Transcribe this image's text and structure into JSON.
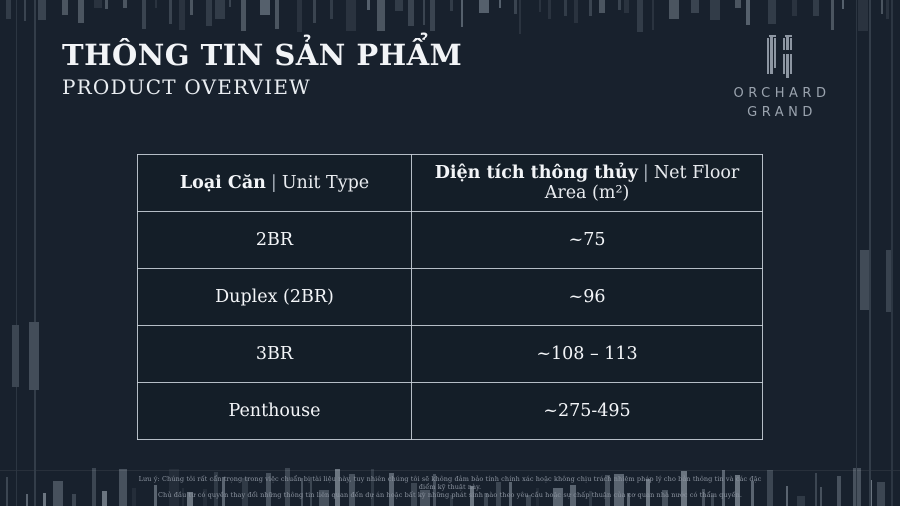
{
  "header": {
    "title_vi": "THÔNG TIN SẢN PHẨM",
    "title_en": "PRODUCT OVERVIEW"
  },
  "logo": {
    "name1": "ORCHARD",
    "name2": "GRAND"
  },
  "table": {
    "columns": [
      {
        "vi": "Loại Căn",
        "sep": "|",
        "en": "Unit Type"
      },
      {
        "vi": "Diện tích thông thủy",
        "sep": "|",
        "en": "Net Floor Area (m²)"
      }
    ],
    "rows": [
      {
        "unit_type": "2BR",
        "net_floor_area": "~75"
      },
      {
        "unit_type": "Duplex (2BR)",
        "net_floor_area": "~96"
      },
      {
        "unit_type": "3BR",
        "net_floor_area": "~108 – 113"
      },
      {
        "unit_type": "Penthouse",
        "net_floor_area": "~275-495"
      }
    ]
  },
  "footer": {
    "line1": "Lưu ý: Chúng tôi rất cẩn trọng trong việc chuẩn bị tài liệu này, tuy nhiên chúng tôi sẽ không đảm bảo tính chính xác hoặc không chịu trách nhiệm pháp lý cho bản thông tin và các đặc điểm kỹ thuật này.",
    "line2": "Chủ đầu tư có quyền thay đổi những thông tin liên quan đến dự án hoặc bất kỳ những phát sinh nào theo yêu cầu hoặc sự chấp thuận của cơ quan nhà nước có thẩm quyền."
  },
  "colors": {
    "background": "#18212d",
    "table_border": "#c7ced7",
    "text_primary": "#f3f5f8",
    "logo_text": "#9aa3ae",
    "disclaimer_text": "#8b939f"
  }
}
